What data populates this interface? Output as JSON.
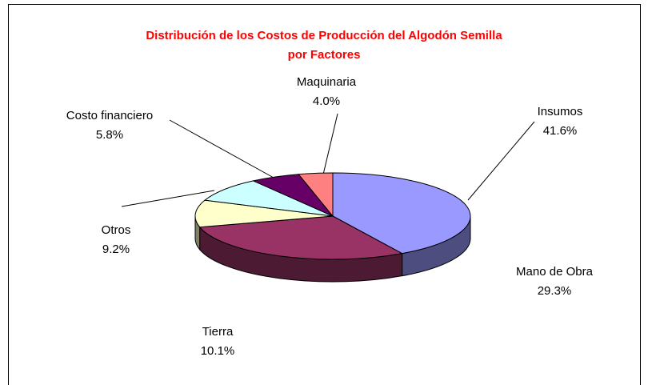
{
  "chart_data": {
    "type": "pie3d",
    "title": [
      "Distribución de los Costos de Producción del Algodón Semilla",
      "por Factores"
    ],
    "categories": [
      "Insumos",
      "Mano de Obra",
      "Tierra",
      "Otros",
      "Costo financiero",
      "Maquinaria"
    ],
    "values": [
      41.6,
      29.3,
      10.1,
      9.2,
      5.8,
      4.0
    ],
    "value_labels": [
      "41.6%",
      "29.3%",
      "10.1%",
      "9.2%",
      "5.8%",
      "4.0%"
    ],
    "colors": [
      "#9999ff",
      "#993366",
      "#ffffcc",
      "#ccffff",
      "#660066",
      "#ff8080"
    ]
  }
}
